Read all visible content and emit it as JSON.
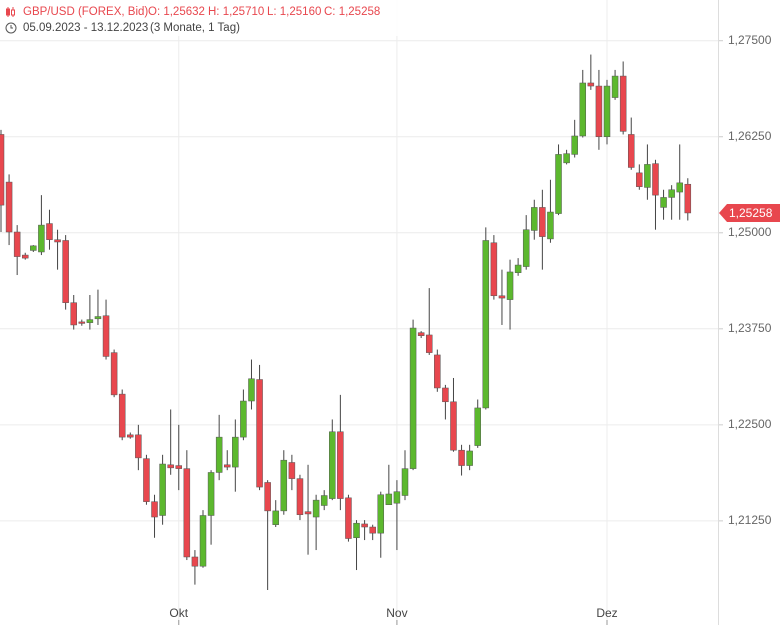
{
  "chart_data": {
    "type": "candlestick",
    "header": {
      "symbol": "GBP/USD (FOREX, Bid)",
      "ohlc": [
        "O: 1,25632",
        "H: 1,25710",
        "L: 1,25160",
        "C: 1,25258"
      ],
      "range": "05.09.2023 - 13.12.2023",
      "period": "(3 Monate, 1 Tag)"
    },
    "categories": [
      null,
      null,
      null,
      null,
      null,
      null,
      null,
      null,
      null,
      null,
      null,
      null,
      null,
      null,
      null,
      null,
      null,
      null,
      null,
      null,
      null,
      null,
      "Okt",
      null,
      null,
      null,
      null,
      null,
      null,
      null,
      null,
      null,
      null,
      null,
      null,
      null,
      null,
      null,
      null,
      null,
      null,
      null,
      null,
      null,
      null,
      null,
      null,
      null,
      null,
      "Nov",
      null,
      null,
      null,
      null,
      null,
      null,
      null,
      null,
      null,
      null,
      null,
      null,
      null,
      null,
      null,
      null,
      null,
      null,
      null,
      null,
      null,
      null,
      null,
      null,
      null,
      "Dez",
      null,
      null,
      null,
      null,
      null,
      null,
      null,
      null,
      null,
      null
    ],
    "open": [
      1.2628,
      1.2566,
      1.2501,
      1.2471,
      1.2477,
      1.2475,
      1.2512,
      1.2491,
      1.249,
      1.2409,
      1.2384,
      1.2383,
      1.2388,
      1.2392,
      1.2344,
      1.229,
      1.2237,
      1.2237,
      1.2206,
      1.215,
      1.2132,
      1.2198,
      1.2197,
      1.2193,
      1.2078,
      1.2066,
      1.2132,
      1.2188,
      1.2198,
      1.2195,
      1.2234,
      1.2281,
      1.2309,
      1.2175,
      1.212,
      1.2138,
      1.2201,
      1.218,
      1.2137,
      1.213,
      1.2145,
      1.2154,
      1.2241,
      1.2155,
      1.2103,
      1.2121,
      1.2117,
      1.2109,
      1.2146,
      1.2148,
      1.2158,
      1.2193,
      1.237,
      1.2367,
      1.2341,
      1.2298,
      1.228,
      1.2217,
      1.2197,
      1.2223,
      1.2272,
      1.2487,
      1.2418,
      1.2413,
      1.2448,
      1.2456,
      1.2503,
      1.2533,
      1.2492,
      1.2525,
      1.2591,
      1.2602,
      1.2626,
      1.2695,
      1.2691,
      1.2625,
      1.2676,
      1.2704,
      1.2628,
      1.2578,
      1.2559,
      1.259,
      1.2533,
      1.2546,
      1.2553,
      1.25632
    ],
    "high": [
      1.2634,
      1.2576,
      1.251,
      1.2474,
      1.2484,
      1.2549,
      1.253,
      1.2504,
      1.2497,
      1.2419,
      1.2387,
      1.2419,
      1.2426,
      1.2413,
      1.2348,
      1.2296,
      1.224,
      1.225,
      1.2211,
      1.2159,
      1.2211,
      1.227,
      1.225,
      1.2217,
      1.2087,
      1.2139,
      1.2191,
      1.2263,
      1.2217,
      1.2257,
      1.2296,
      1.2335,
      1.2328,
      1.2178,
      1.2152,
      1.2217,
      1.2211,
      1.2185,
      1.2198,
      1.2159,
      1.2165,
      1.2257,
      1.2289,
      1.2159,
      1.2126,
      1.2126,
      1.212,
      1.2163,
      1.2198,
      1.2178,
      1.2217,
      1.2387,
      1.2372,
      1.2428,
      1.2348,
      1.2302,
      1.2311,
      1.2224,
      1.2224,
      1.2283,
      1.2507,
      1.2497,
      1.2452,
      1.2465,
      1.2467,
      1.2523,
      1.2543,
      1.2556,
      1.2569,
      1.2615,
      1.2608,
      1.2647,
      1.2712,
      1.2732,
      1.2712,
      1.2699,
      1.2712,
      1.2723,
      1.265,
      1.2589,
      1.2615,
      1.2595,
      1.2556,
      1.2562,
      1.2615,
      1.2571
    ],
    "low": [
      1.2501,
      1.2484,
      1.2445,
      1.2465,
      1.2475,
      1.2471,
      1.2478,
      1.2452,
      1.24,
      1.2374,
      1.2379,
      1.2374,
      1.238,
      1.2335,
      1.2286,
      1.223,
      1.2232,
      1.2191,
      1.2146,
      1.2103,
      1.212,
      1.2185,
      1.2165,
      1.2074,
      1.2042,
      1.2064,
      1.2094,
      1.2178,
      1.2191,
      1.2163,
      1.223,
      1.227,
      1.2165,
      1.2035,
      1.2117,
      1.2133,
      1.2165,
      1.2126,
      1.2081,
      1.2087,
      1.2139,
      1.2152,
      1.2139,
      1.2098,
      1.2061,
      1.21,
      1.21,
      1.2077,
      1.2146,
      1.2087,
      1.2152,
      1.2191,
      1.2363,
      1.2341,
      1.2293,
      1.2257,
      1.2215,
      1.2184,
      1.2191,
      1.222,
      1.227,
      1.2413,
      1.238,
      1.2374,
      1.2444,
      1.2452,
      1.2491,
      1.2452,
      1.2487,
      1.2523,
      1.2589,
      1.2598,
      1.2624,
      1.2686,
      1.2608,
      1.2615,
      1.2673,
      1.2628,
      1.2582,
      1.2556,
      1.2543,
      1.2504,
      1.2517,
      1.2517,
      1.2517,
      1.2516
    ],
    "close": [
      1.2536,
      1.2501,
      1.2469,
      1.2467,
      1.2483,
      1.251,
      1.2491,
      1.2488,
      1.2409,
      1.238,
      1.2382,
      1.2387,
      1.2391,
      1.2339,
      1.2289,
      1.2234,
      1.2234,
      1.2207,
      1.215,
      1.213,
      1.2199,
      1.2194,
      1.2193,
      1.2078,
      1.2066,
      1.2132,
      1.2188,
      1.2234,
      1.2195,
      1.2234,
      1.2281,
      1.231,
      1.2169,
      1.2138,
      1.2138,
      1.2204,
      1.218,
      1.2133,
      1.2134,
      1.2152,
      1.2158,
      1.2241,
      1.2154,
      1.2102,
      1.2122,
      1.2117,
      1.2109,
      1.2159,
      1.216,
      1.2163,
      1.2193,
      1.2376,
      1.2366,
      1.2344,
      1.2298,
      1.228,
      1.2217,
      1.2197,
      1.2216,
      1.2272,
      1.249,
      1.2418,
      1.2415,
      1.2449,
      1.2458,
      1.2504,
      1.2533,
      1.2495,
      1.2527,
      1.2602,
      1.2603,
      1.2626,
      1.2695,
      1.2691,
      1.2625,
      1.2691,
      1.2704,
      1.2632,
      1.2585,
      1.256,
      1.2589,
      1.2549,
      1.2546,
      1.2556,
      1.2565,
      1.25258
    ],
    "up_color": "#5cb82e",
    "down_color": "#e8474e",
    "last_price": {
      "value": 1.25258,
      "label": "1,25258"
    },
    "ylim": [
      1.2022,
      1.2803
    ],
    "yticks": [
      {
        "value": 1.2125,
        "label": "1,21250"
      },
      {
        "value": 1.225,
        "label": "1,22500"
      },
      {
        "value": 1.2375,
        "label": "1,23750"
      },
      {
        "value": 1.25,
        "label": "1,25000"
      },
      {
        "value": 1.2625,
        "label": "1,26250"
      },
      {
        "value": 1.275,
        "label": "1,27500"
      }
    ],
    "grid": true
  }
}
